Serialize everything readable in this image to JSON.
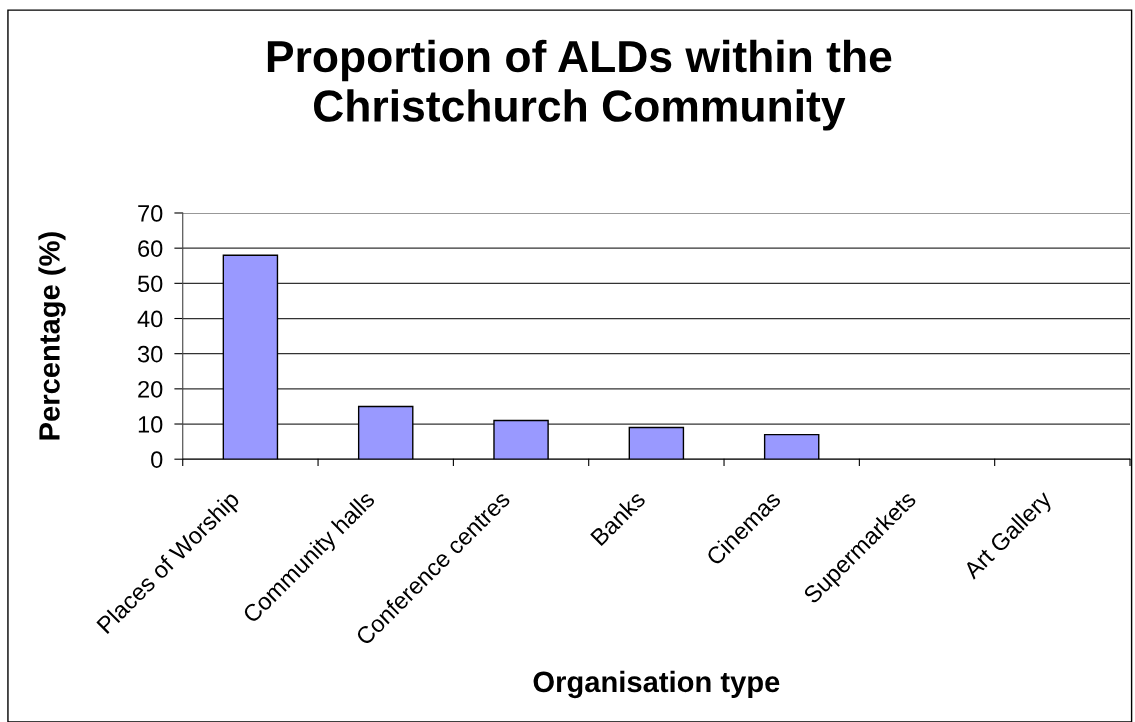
{
  "chart_data": {
    "type": "bar",
    "title": "Proportion of ALDs within the\nChristchurch Community",
    "xlabel": "Organisation type",
    "ylabel": "Percentage (%)",
    "categories": [
      "Places of Worship",
      "Community halls",
      "Conference centres",
      "Banks",
      "Cinemas",
      "Supermarkets",
      "Art Gallery"
    ],
    "values": [
      58,
      15,
      11,
      9,
      7,
      0,
      0
    ],
    "color": "#9999ff",
    "ylim": [
      0,
      70
    ],
    "yticks": [
      0,
      10,
      20,
      30,
      40,
      50,
      60,
      70
    ],
    "grid": "y",
    "legend": false
  }
}
